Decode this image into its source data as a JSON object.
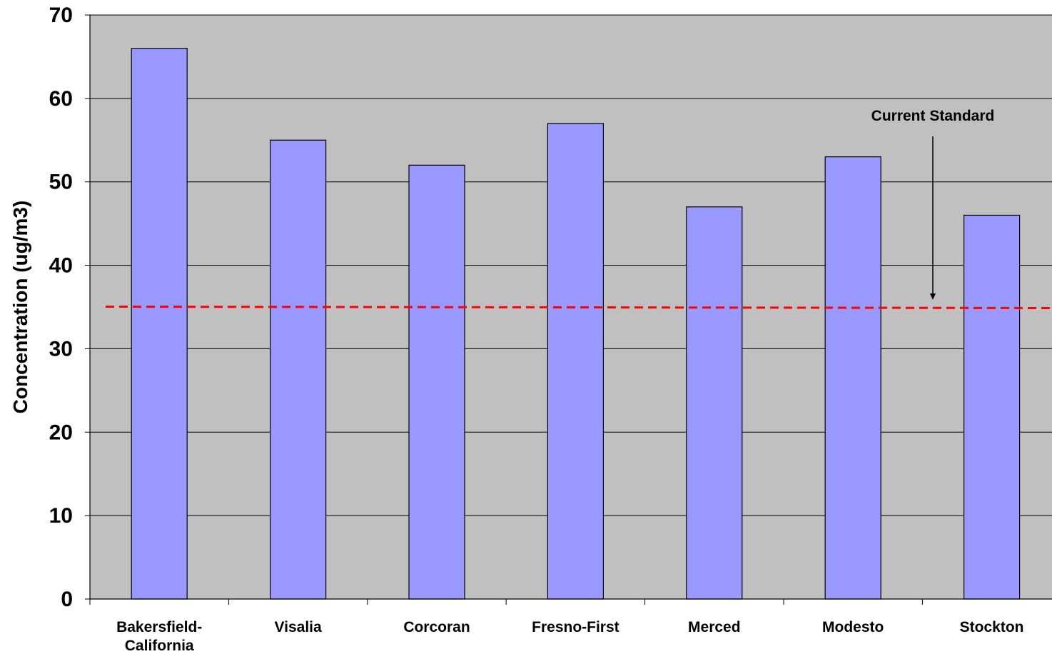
{
  "chart_data": {
    "type": "bar",
    "title": "",
    "xlabel": "",
    "ylabel": "Concentration (ug/m3)",
    "ylim": [
      0,
      70
    ],
    "yticks": [
      0,
      10,
      20,
      30,
      40,
      50,
      60,
      70
    ],
    "grid": true,
    "legend": "none",
    "categories": [
      [
        "Bakersfield-",
        "California"
      ],
      [
        "Visalia"
      ],
      [
        "Corcoran"
      ],
      [
        "Fresno-First"
      ],
      [
        "Merced"
      ],
      [
        "Modesto"
      ],
      [
        "Stockton"
      ]
    ],
    "values": [
      66,
      55,
      52,
      57,
      47,
      53,
      46
    ],
    "reference_line": {
      "value": 35,
      "style": "dashed",
      "color": "#ff0000"
    },
    "annotation": {
      "text": "Current Standard",
      "points_to": "reference_line"
    },
    "colors": {
      "bar_fill": "#9999ff",
      "bar_stroke": "#000000",
      "plot_background": "#c0c0c0",
      "gridline": "#000000"
    }
  }
}
